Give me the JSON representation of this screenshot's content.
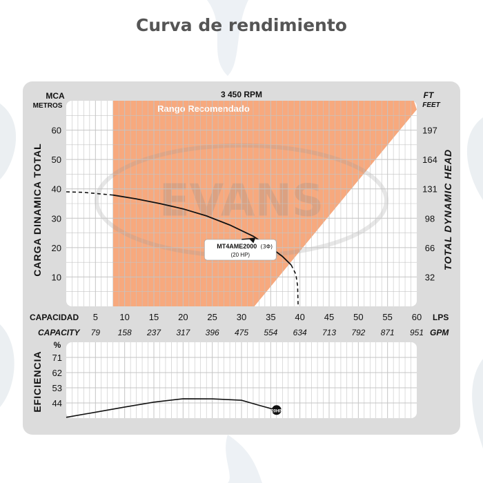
{
  "title": "Curva de rendimiento",
  "watermark": "EVANS",
  "colors": {
    "panel": "#dcdcdc",
    "recommended_range": "#f7a97e",
    "grid": "#c4c4c4",
    "curve": "#111111"
  },
  "chart_data": [
    {
      "type": "line",
      "title": "3 450 RPM",
      "y_left_label": "CARGA DINAMICA TOTAL",
      "y_left_units": [
        "MCA",
        "METROS"
      ],
      "y_right_label": "TOTAL DYNAMIC HEAD",
      "y_right_units": [
        "FT",
        "FEET"
      ],
      "x_label_lps": "CAPACIDAD",
      "x_unit_lps": "LPS",
      "x_label_gpm": "CAPACITY",
      "x_unit_gpm": "GPM",
      "xlim": [
        5,
        60
      ],
      "ylim": [
        0,
        70
      ],
      "x_ticks": [
        5,
        10,
        15,
        20,
        25,
        30,
        35,
        40,
        45,
        50,
        55,
        60
      ],
      "gpm_ticks": [
        "79",
        "158",
        "237",
        "317",
        "396",
        "475",
        "554",
        "634",
        "713",
        "792",
        "871",
        "951"
      ],
      "y_ticks": [
        10,
        20,
        30,
        40,
        50,
        60
      ],
      "ft_ticks": [
        "32",
        "66",
        "98",
        "131",
        "164",
        "197"
      ],
      "grid": true,
      "recommended_range": {
        "label": "Rango Recomendado",
        "polygon": [
          [
            8,
            0
          ],
          [
            8,
            70
          ],
          [
            59.5,
            70
          ],
          [
            60,
            67
          ],
          [
            32.2,
            0
          ]
        ]
      },
      "series": [
        {
          "name": "MT4AME2000",
          "name_suffix": "(3Φ)",
          "power": "(20 HP)",
          "dashed_start": [
            [
              0,
              39
            ],
            [
              3,
              38.8
            ],
            [
              8,
              37.9
            ]
          ],
          "solid": [
            [
              8,
              37.9
            ],
            [
              12,
              36.6
            ],
            [
              16,
              35
            ],
            [
              20,
              33.2
            ],
            [
              24,
              30.8
            ],
            [
              28,
              27.7
            ],
            [
              32,
              23.9
            ],
            [
              35,
              20
            ],
            [
              37,
              17
            ],
            [
              38.5,
              14.1
            ]
          ],
          "dashed_end": [
            [
              38.5,
              14.1
            ],
            [
              39.3,
              11
            ],
            [
              39.6,
              7
            ],
            [
              39.7,
              0
            ]
          ]
        }
      ]
    },
    {
      "type": "line",
      "ylabel": "EFICIENCIA",
      "y_unit": "%",
      "y_ticks": [
        44,
        53,
        62,
        71
      ],
      "ylim": [
        35,
        80
      ],
      "xlim": [
        5,
        60
      ],
      "series": [
        {
          "name": "MT4AME2000",
          "marker_label": "20HP",
          "points": [
            [
              0,
              35.5
            ],
            [
              5,
              38.5
            ],
            [
              10,
              41.6
            ],
            [
              15,
              44.5
            ],
            [
              20,
              46.5
            ],
            [
              25,
              46.4
            ],
            [
              30,
              45.6
            ],
            [
              33,
              42.6
            ],
            [
              36,
              39.8
            ]
          ]
        }
      ]
    }
  ]
}
